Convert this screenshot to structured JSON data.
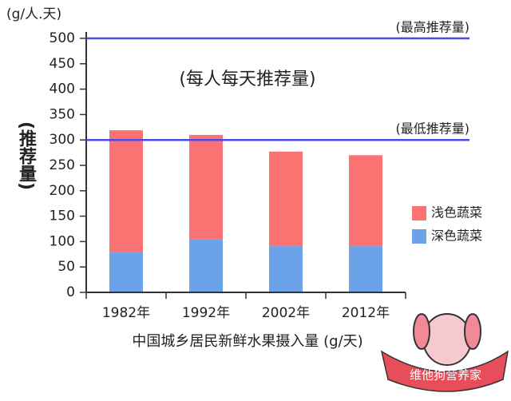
{
  "chart_data": {
    "type": "stacked_bar",
    "unit_label": "(g/人.天)",
    "annotation": "(每人每天推荐量)",
    "y_label": "(推荐量)",
    "x_label": "中国城乡居民新鲜水果摄入量 (g/天)",
    "categories": [
      "1982年",
      "1992年",
      "2002年",
      "2012年"
    ],
    "series": [
      {
        "name": "深色蔬菜",
        "color": "#6ca2e8",
        "values": [
          80,
          104,
          91,
          91
        ]
      },
      {
        "name": "浅色蔬菜",
        "color": "#fb7272",
        "values": [
          239,
          206,
          186,
          179
        ]
      }
    ],
    "ylim": [
      0,
      500
    ],
    "yticks": [
      0,
      50,
      100,
      150,
      200,
      250,
      300,
      350,
      400,
      450,
      500
    ],
    "reference_lines": [
      {
        "value": 500,
        "label": "(最高推荐量)",
        "color": "#4a4ae6"
      },
      {
        "value": 300,
        "label": "(最低推荐量)",
        "color": "#4a4ae6"
      }
    ],
    "logo": "维他狗营养家"
  }
}
